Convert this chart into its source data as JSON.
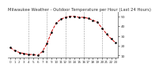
{
  "title": "Milwaukee Weather - Outdoor Temperature per Hour (Last 24 Hours)",
  "x_values": [
    0,
    1,
    2,
    3,
    4,
    5,
    6,
    7,
    8,
    9,
    10,
    11,
    12,
    13,
    14,
    15,
    16,
    17,
    18,
    19,
    20,
    21,
    22,
    23
  ],
  "y_values": [
    18,
    15,
    13,
    12,
    11,
    11,
    10,
    14,
    22,
    34,
    43,
    47,
    49,
    50,
    50,
    49,
    49,
    48,
    46,
    44,
    38,
    32,
    27,
    23
  ],
  "ylim": [
    8,
    55
  ],
  "yticks": [
    10,
    20,
    30,
    40,
    50
  ],
  "ytick_labels": [
    "10",
    "20",
    "30",
    "40",
    "50"
  ],
  "line_color": "#cc0000",
  "marker_color": "#000000",
  "bg_color": "#ffffff",
  "grid_color": "#999999",
  "title_fontsize": 3.8,
  "tick_fontsize": 3.0,
  "vgrid_positions": [
    4,
    8,
    12,
    16,
    20
  ]
}
